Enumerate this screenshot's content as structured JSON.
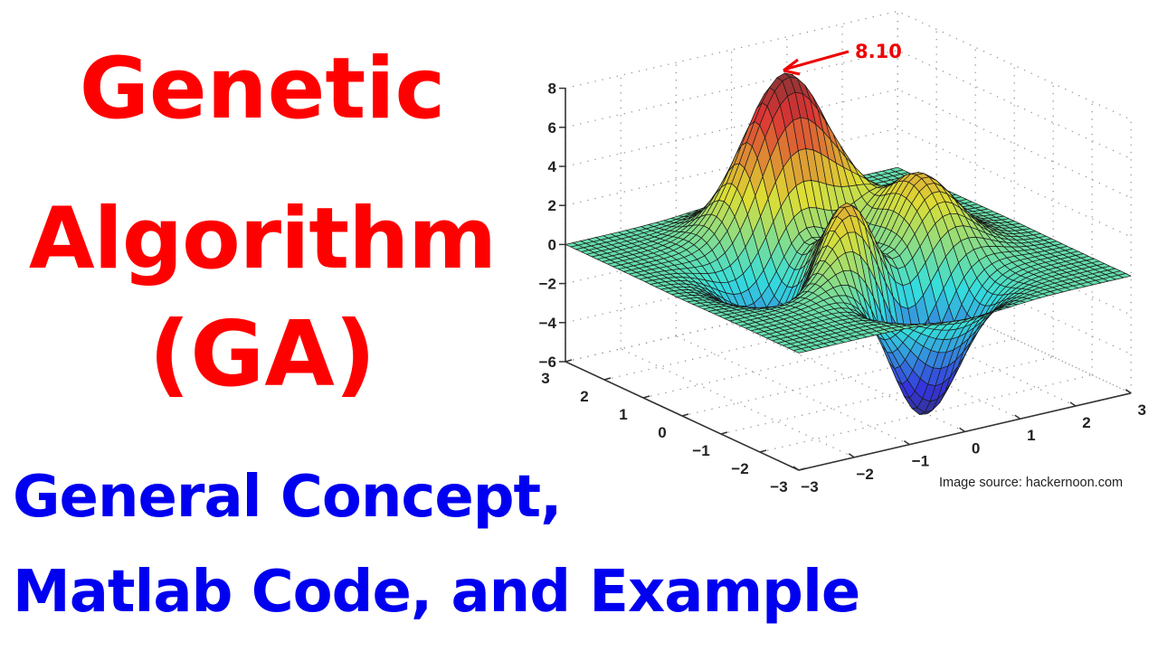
{
  "title": {
    "line1": "Genetic",
    "line2": "Algorithm",
    "line3": "(GA)"
  },
  "subtitle": {
    "line1": "General Concept,",
    "line2": "Matlab Code, and Example"
  },
  "image_source": "Image source: hackernoon.com",
  "colors": {
    "title": "#ff0000",
    "subtitle": "#0000f0",
    "annotation": "#e00000"
  },
  "chart_data": {
    "type": "surface",
    "colormap": "jet",
    "grid": true,
    "xlim": [
      -3,
      3
    ],
    "ylim": [
      -3,
      3
    ],
    "zlim": [
      -6,
      8
    ],
    "x_ticks": [
      "−3",
      "−2",
      "−1",
      "0",
      "1",
      "2",
      "3"
    ],
    "y_ticks": [
      "3",
      "2",
      "1",
      "0",
      "−1",
      "−2",
      "−3"
    ],
    "z_ticks": [
      "8",
      "6",
      "4",
      "2",
      "0",
      "−2",
      "−4",
      "−6"
    ],
    "annotation": {
      "label": "8.10",
      "value": 8.1
    }
  }
}
